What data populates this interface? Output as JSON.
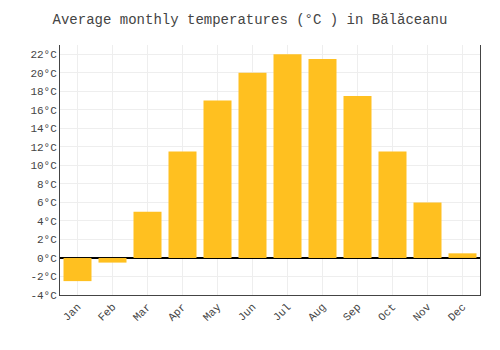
{
  "chart_data": {
    "type": "bar",
    "title": "Average monthly temperatures (°C ) in Bălăceanu",
    "categories": [
      "Jan",
      "Feb",
      "Mar",
      "Apr",
      "May",
      "Jun",
      "Jul",
      "Aug",
      "Sep",
      "Oct",
      "Nov",
      "Dec"
    ],
    "values": [
      -2.5,
      -0.5,
      5.0,
      11.5,
      17.0,
      20.0,
      22.0,
      21.5,
      17.5,
      11.5,
      6.0,
      0.5
    ],
    "color": "#FFC020",
    "ylim": [
      -4,
      23
    ],
    "yticks": [
      {
        "value": -4,
        "label": "-4°C"
      },
      {
        "value": -2,
        "label": "-2°C"
      },
      {
        "value": 0,
        "label": "0°C"
      },
      {
        "value": 2,
        "label": "2°C"
      },
      {
        "value": 4,
        "label": "4°C"
      },
      {
        "value": 6,
        "label": "6°C"
      },
      {
        "value": 8,
        "label": "8°C"
      },
      {
        "value": 10,
        "label": "10°C"
      },
      {
        "value": 12,
        "label": "12°C"
      },
      {
        "value": 14,
        "label": "14°C"
      },
      {
        "value": 16,
        "label": "16°C"
      },
      {
        "value": 18,
        "label": "18°C"
      },
      {
        "value": 20,
        "label": "20°C"
      },
      {
        "value": 22,
        "label": "22°C"
      }
    ],
    "grid": true
  }
}
